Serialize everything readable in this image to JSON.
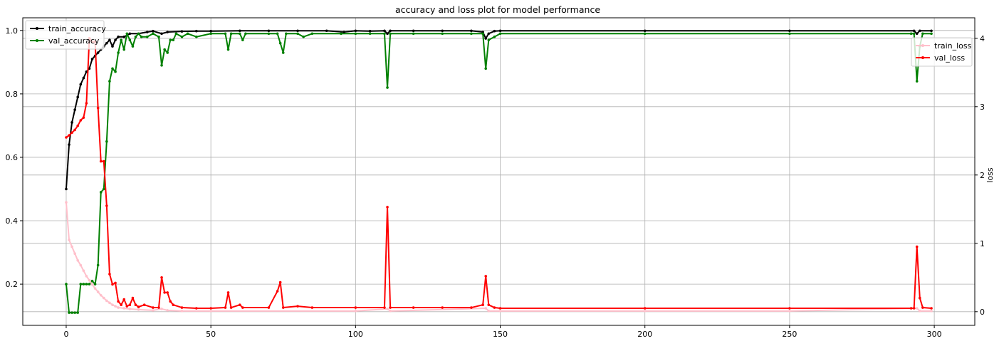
{
  "chart_data": {
    "type": "line",
    "title": "accuracy and loss plot for model performance",
    "xlabel": "",
    "ylabel_left": "",
    "ylabel_right": "loss",
    "xlim": [
      -15,
      314
    ],
    "ylim_left": [
      0.07,
      1.04
    ],
    "ylim_right": [
      -0.2,
      4.3
    ],
    "x_ticks": [
      0,
      50,
      100,
      150,
      200,
      250,
      300
    ],
    "y_ticks_left": [
      0.2,
      0.4,
      0.6,
      0.8,
      1.0
    ],
    "y_ticks_right": [
      0,
      1,
      2,
      3,
      4
    ],
    "grid": true,
    "legend_left": "top-left",
    "legend_right": "top-right",
    "series": [
      {
        "name": "train_accuracy",
        "axis": "left",
        "color": "#000000",
        "points": [
          [
            0,
            0.5
          ],
          [
            1,
            0.64
          ],
          [
            2,
            0.71
          ],
          [
            3,
            0.75
          ],
          [
            4,
            0.79
          ],
          [
            5,
            0.83
          ],
          [
            6,
            0.85
          ],
          [
            7,
            0.87
          ],
          [
            8,
            0.88
          ],
          [
            9,
            0.91
          ],
          [
            10,
            0.92
          ],
          [
            11,
            0.93
          ],
          [
            12,
            0.94
          ],
          [
            13,
            0.95
          ],
          [
            14,
            0.96
          ],
          [
            15,
            0.97
          ],
          [
            16,
            0.95
          ],
          [
            17,
            0.97
          ],
          [
            18,
            0.98
          ],
          [
            20,
            0.98
          ],
          [
            22,
            0.99
          ],
          [
            25,
            0.99
          ],
          [
            28,
            0.995
          ],
          [
            30,
            0.998
          ],
          [
            33,
            0.99
          ],
          [
            35,
            0.995
          ],
          [
            40,
            0.997
          ],
          [
            45,
            0.998
          ],
          [
            50,
            0.998
          ],
          [
            60,
            0.999
          ],
          [
            70,
            0.999
          ],
          [
            80,
            0.999
          ],
          [
            90,
            0.999
          ],
          [
            96,
            0.995
          ],
          [
            100,
            0.999
          ],
          [
            105,
            0.998
          ],
          [
            110,
            0.999
          ],
          [
            111,
            0.99
          ],
          [
            112,
            0.999
          ],
          [
            120,
            0.999
          ],
          [
            130,
            0.999
          ],
          [
            140,
            0.999
          ],
          [
            144,
            0.995
          ],
          [
            145,
            0.975
          ],
          [
            146,
            0.99
          ],
          [
            148,
            0.998
          ],
          [
            150,
            0.999
          ],
          [
            200,
            0.999
          ],
          [
            250,
            0.999
          ],
          [
            293,
            0.999
          ],
          [
            294,
            0.99
          ],
          [
            295,
            0.999
          ],
          [
            299,
            0.999
          ]
        ]
      },
      {
        "name": "val_accuracy",
        "axis": "left",
        "color": "#008000",
        "points": [
          [
            0,
            0.2
          ],
          [
            1,
            0.11
          ],
          [
            2,
            0.11
          ],
          [
            3,
            0.11
          ],
          [
            4,
            0.11
          ],
          [
            5,
            0.2
          ],
          [
            6,
            0.2
          ],
          [
            7,
            0.2
          ],
          [
            8,
            0.2
          ],
          [
            9,
            0.21
          ],
          [
            10,
            0.2
          ],
          [
            11,
            0.26
          ],
          [
            12,
            0.49
          ],
          [
            13,
            0.5
          ],
          [
            14,
            0.65
          ],
          [
            15,
            0.84
          ],
          [
            16,
            0.88
          ],
          [
            17,
            0.87
          ],
          [
            18,
            0.93
          ],
          [
            19,
            0.97
          ],
          [
            20,
            0.94
          ],
          [
            21,
            0.99
          ],
          [
            22,
            0.97
          ],
          [
            23,
            0.95
          ],
          [
            24,
            0.98
          ],
          [
            25,
            0.99
          ],
          [
            26,
            0.98
          ],
          [
            28,
            0.98
          ],
          [
            30,
            0.99
          ],
          [
            32,
            0.98
          ],
          [
            33,
            0.89
          ],
          [
            34,
            0.94
          ],
          [
            35,
            0.93
          ],
          [
            36,
            0.97
          ],
          [
            37,
            0.97
          ],
          [
            38,
            0.99
          ],
          [
            40,
            0.98
          ],
          [
            42,
            0.99
          ],
          [
            45,
            0.98
          ],
          [
            50,
            0.99
          ],
          [
            55,
            0.99
          ],
          [
            56,
            0.94
          ],
          [
            57,
            0.99
          ],
          [
            60,
            0.99
          ],
          [
            61,
            0.97
          ],
          [
            62,
            0.99
          ],
          [
            70,
            0.99
          ],
          [
            73,
            0.99
          ],
          [
            74,
            0.96
          ],
          [
            75,
            0.93
          ],
          [
            76,
            0.99
          ],
          [
            80,
            0.99
          ],
          [
            82,
            0.98
          ],
          [
            85,
            0.99
          ],
          [
            95,
            0.99
          ],
          [
            100,
            0.99
          ],
          [
            105,
            0.99
          ],
          [
            110,
            0.99
          ],
          [
            111,
            0.82
          ],
          [
            112,
            0.99
          ],
          [
            120,
            0.99
          ],
          [
            130,
            0.99
          ],
          [
            140,
            0.99
          ],
          [
            144,
            0.99
          ],
          [
            145,
            0.88
          ],
          [
            146,
            0.97
          ],
          [
            148,
            0.98
          ],
          [
            150,
            0.99
          ],
          [
            200,
            0.99
          ],
          [
            250,
            0.99
          ],
          [
            292,
            0.99
          ],
          [
            293,
            0.99
          ],
          [
            294,
            0.84
          ],
          [
            295,
            0.95
          ],
          [
            296,
            0.99
          ],
          [
            299,
            0.99
          ]
        ]
      },
      {
        "name": "train_loss",
        "axis": "right",
        "color": "#ffc0cb",
        "points": [
          [
            0,
            1.6
          ],
          [
            1,
            1.05
          ],
          [
            2,
            0.95
          ],
          [
            3,
            0.85
          ],
          [
            4,
            0.75
          ],
          [
            5,
            0.68
          ],
          [
            6,
            0.6
          ],
          [
            7,
            0.52
          ],
          [
            8,
            0.46
          ],
          [
            9,
            0.4
          ],
          [
            10,
            0.34
          ],
          [
            11,
            0.29
          ],
          [
            12,
            0.24
          ],
          [
            13,
            0.2
          ],
          [
            14,
            0.16
          ],
          [
            15,
            0.13
          ],
          [
            16,
            0.1
          ],
          [
            17,
            0.08
          ],
          [
            18,
            0.06
          ],
          [
            20,
            0.05
          ],
          [
            22,
            0.04
          ],
          [
            25,
            0.03
          ],
          [
            30,
            0.02
          ],
          [
            33,
            0.04
          ],
          [
            35,
            0.02
          ],
          [
            40,
            0.01
          ],
          [
            50,
            0.01
          ],
          [
            100,
            0.01
          ],
          [
            111,
            0.04
          ],
          [
            112,
            0.01
          ],
          [
            145,
            0.05
          ],
          [
            146,
            0.01
          ],
          [
            150,
            0.01
          ],
          [
            200,
            0.01
          ],
          [
            250,
            0.01
          ],
          [
            294,
            0.05
          ],
          [
            295,
            0.01
          ],
          [
            299,
            0.01
          ]
        ]
      },
      {
        "name": "val_loss",
        "axis": "right",
        "color": "#ff0000",
        "points": [
          [
            0,
            2.55
          ],
          [
            1,
            2.58
          ],
          [
            2,
            2.62
          ],
          [
            3,
            2.66
          ],
          [
            4,
            2.72
          ],
          [
            5,
            2.8
          ],
          [
            6,
            2.84
          ],
          [
            7,
            3.05
          ],
          [
            8,
            4.0
          ],
          [
            9,
            3.95
          ],
          [
            10,
            3.95
          ],
          [
            11,
            2.98
          ],
          [
            12,
            2.2
          ],
          [
            13,
            2.2
          ],
          [
            14,
            1.55
          ],
          [
            15,
            0.55
          ],
          [
            16,
            0.4
          ],
          [
            17,
            0.42
          ],
          [
            18,
            0.15
          ],
          [
            19,
            0.1
          ],
          [
            20,
            0.18
          ],
          [
            21,
            0.08
          ],
          [
            22,
            0.1
          ],
          [
            23,
            0.2
          ],
          [
            24,
            0.1
          ],
          [
            25,
            0.07
          ],
          [
            27,
            0.1
          ],
          [
            30,
            0.06
          ],
          [
            32,
            0.06
          ],
          [
            33,
            0.5
          ],
          [
            34,
            0.28
          ],
          [
            35,
            0.28
          ],
          [
            36,
            0.15
          ],
          [
            37,
            0.1
          ],
          [
            40,
            0.06
          ],
          [
            45,
            0.05
          ],
          [
            50,
            0.05
          ],
          [
            55,
            0.06
          ],
          [
            56,
            0.28
          ],
          [
            57,
            0.06
          ],
          [
            60,
            0.1
          ],
          [
            61,
            0.06
          ],
          [
            70,
            0.06
          ],
          [
            73,
            0.3
          ],
          [
            74,
            0.43
          ],
          [
            75,
            0.06
          ],
          [
            80,
            0.08
          ],
          [
            85,
            0.06
          ],
          [
            100,
            0.06
          ],
          [
            110,
            0.06
          ],
          [
            111,
            1.53
          ],
          [
            112,
            0.06
          ],
          [
            120,
            0.06
          ],
          [
            130,
            0.06
          ],
          [
            140,
            0.06
          ],
          [
            144,
            0.1
          ],
          [
            145,
            0.52
          ],
          [
            146,
            0.1
          ],
          [
            148,
            0.06
          ],
          [
            150,
            0.05
          ],
          [
            200,
            0.05
          ],
          [
            250,
            0.05
          ],
          [
            292,
            0.05
          ],
          [
            293,
            0.05
          ],
          [
            294,
            0.95
          ],
          [
            295,
            0.2
          ],
          [
            296,
            0.06
          ],
          [
            299,
            0.05
          ]
        ]
      }
    ]
  }
}
